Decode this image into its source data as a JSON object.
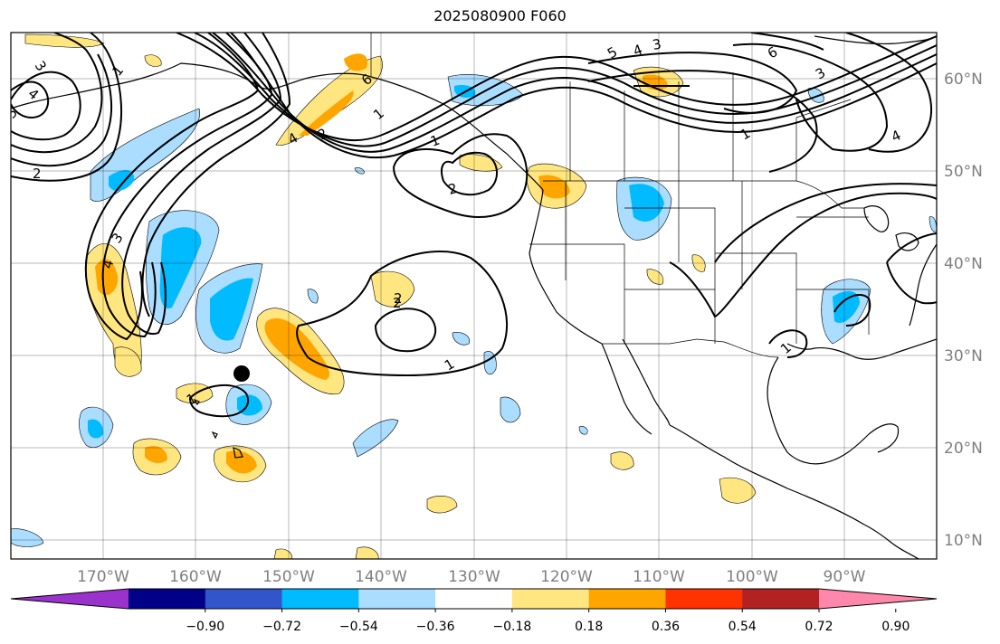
{
  "title": "2025080900 F060",
  "map": {
    "lon_labels": [
      "170°W",
      "160°W",
      "150°W",
      "140°W",
      "130°W",
      "120°W",
      "110°W",
      "100°W",
      "90°W"
    ],
    "lat_labels": [
      "60°N",
      "50°N",
      "40°N",
      "30°N",
      "20°N",
      "10°N"
    ],
    "grid": true
  },
  "colorbar": {
    "tick_labels": [
      "−0.90",
      "−0.72",
      "−0.54",
      "−0.36",
      "−0.18",
      "0.18",
      "0.36",
      "0.54",
      "0.72",
      "0.90"
    ],
    "colors": [
      "#9933cc",
      "#000088",
      "#3355cc",
      "#00bbff",
      "#aaddff",
      "#ffffff",
      "#ffe680",
      "#ffa500",
      "#ff3300",
      "#b22222",
      "#ff88aa"
    ]
  },
  "contour_labels": [
    "3",
    "4",
    "5",
    "1",
    "2",
    "4",
    "2",
    "1",
    "6",
    "1",
    "2",
    "5",
    "4",
    "3",
    "6",
    "3",
    "4",
    "3",
    "4",
    "2",
    "1",
    "2",
    "1",
    "1",
    "1"
  ],
  "marker": "station-dot"
}
